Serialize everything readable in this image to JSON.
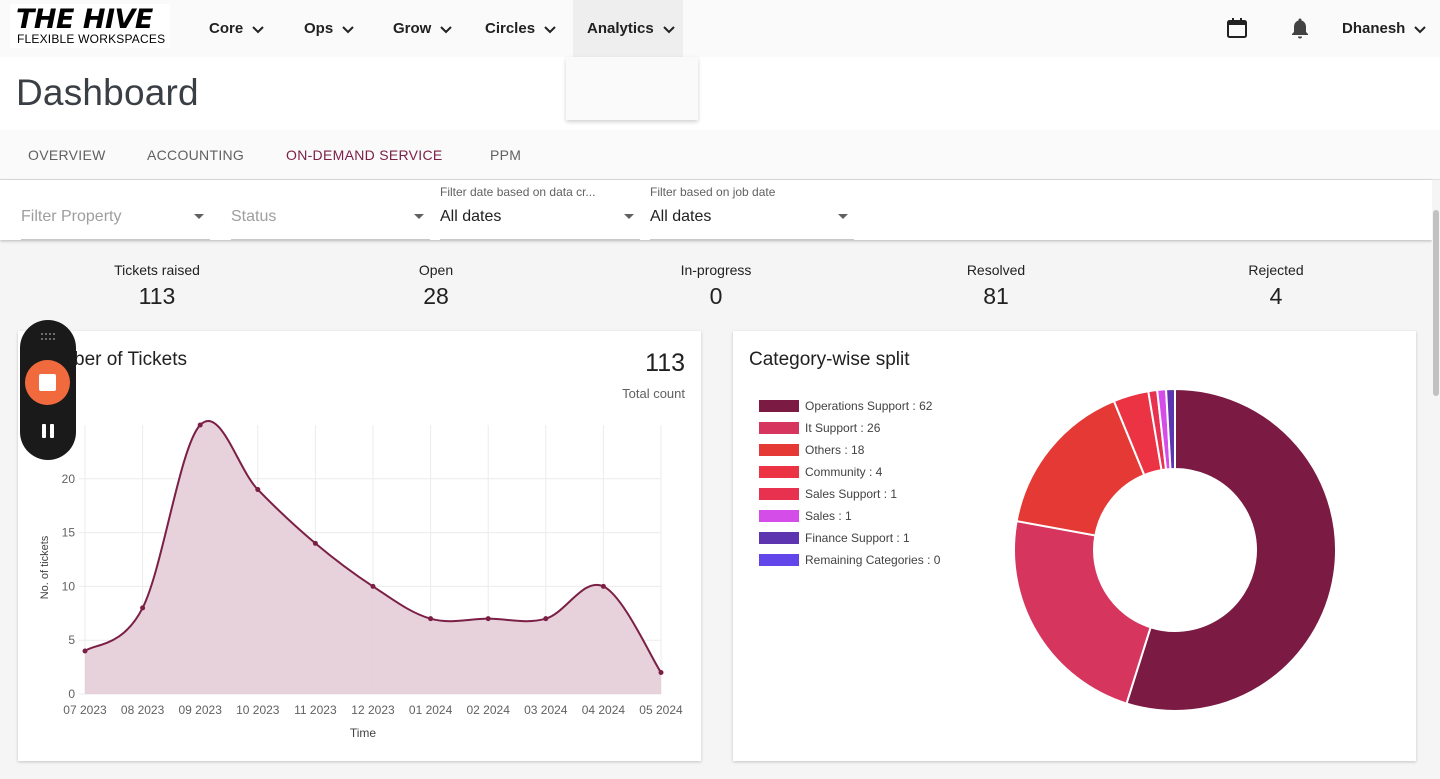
{
  "brand": {
    "name": "THE HIVE",
    "tagline": "FLEXIBLE WORKSPACES"
  },
  "nav": {
    "items": [
      {
        "label": "Core"
      },
      {
        "label": "Ops"
      },
      {
        "label": "Grow"
      },
      {
        "label": "Circles"
      },
      {
        "label": "Analytics"
      }
    ],
    "active": "Analytics",
    "user": "Dhanesh",
    "icons": [
      "calendar-icon",
      "bell-icon",
      "chevron-down-icon"
    ]
  },
  "page": {
    "title": "Dashboard"
  },
  "tabs": [
    {
      "label": "OVERVIEW"
    },
    {
      "label": "ACCOUNTING"
    },
    {
      "label": "ON-DEMAND SERVICE"
    },
    {
      "label": "PPM"
    }
  ],
  "active_tab": "ON-DEMAND SERVICE",
  "filters": {
    "property": {
      "placeholder": "Filter Property"
    },
    "status": {
      "placeholder": "Status"
    },
    "data_date": {
      "caption": "Filter date based on data cr...",
      "value": "All dates"
    },
    "job_date": {
      "caption": "Filter based on job date",
      "value": "All dates"
    }
  },
  "stats": [
    {
      "label": "Tickets raised",
      "value": "113"
    },
    {
      "label": "Open",
      "value": "28"
    },
    {
      "label": "In-progress",
      "value": "0"
    },
    {
      "label": "Resolved",
      "value": "81"
    },
    {
      "label": "Rejected",
      "value": "4"
    }
  ],
  "tickets_card": {
    "title": "ber of Tickets",
    "total": "113",
    "total_label": "Total count"
  },
  "category_card": {
    "title": "Category-wise split"
  },
  "colors": {
    "brand": "#7b1f45",
    "accent_orange": "#f06a3e",
    "area_fill": "#e6cfd9"
  },
  "chart_data": [
    {
      "type": "area",
      "xlabel": "Time",
      "ylabel": "No. of tickets",
      "categories": [
        "07 2023",
        "08 2023",
        "09 2023",
        "10 2023",
        "11 2023",
        "12 2023",
        "01 2024",
        "02 2024",
        "03 2024",
        "04 2024",
        "05 2024"
      ],
      "values": [
        4,
        8,
        25,
        19,
        14,
        10,
        7,
        7,
        7,
        10,
        2
      ],
      "yticks": [
        0,
        5,
        10,
        15,
        20
      ],
      "ylim": [
        0,
        25
      ],
      "grid": true
    },
    {
      "type": "pie",
      "donut": true,
      "legend_position": "left",
      "slices": [
        {
          "label": "Operations Support : 62",
          "value": 62,
          "color": "#7b1a42"
        },
        {
          "label": "It Support : 26",
          "value": 26,
          "color": "#d6355e"
        },
        {
          "label": "Others : 18",
          "value": 18,
          "color": "#e53935"
        },
        {
          "label": "Community : 4",
          "value": 4,
          "color": "#ec3344"
        },
        {
          "label": "Sales Support : 1",
          "value": 1,
          "color": "#e8304f"
        },
        {
          "label": "Sales : 1",
          "value": 1,
          "color": "#d54de8"
        },
        {
          "label": "Finance Support : 1",
          "value": 1,
          "color": "#5e35b1"
        },
        {
          "label": "Remaining Categories : 0",
          "value": 0,
          "color": "#6246ea"
        }
      ]
    }
  ]
}
